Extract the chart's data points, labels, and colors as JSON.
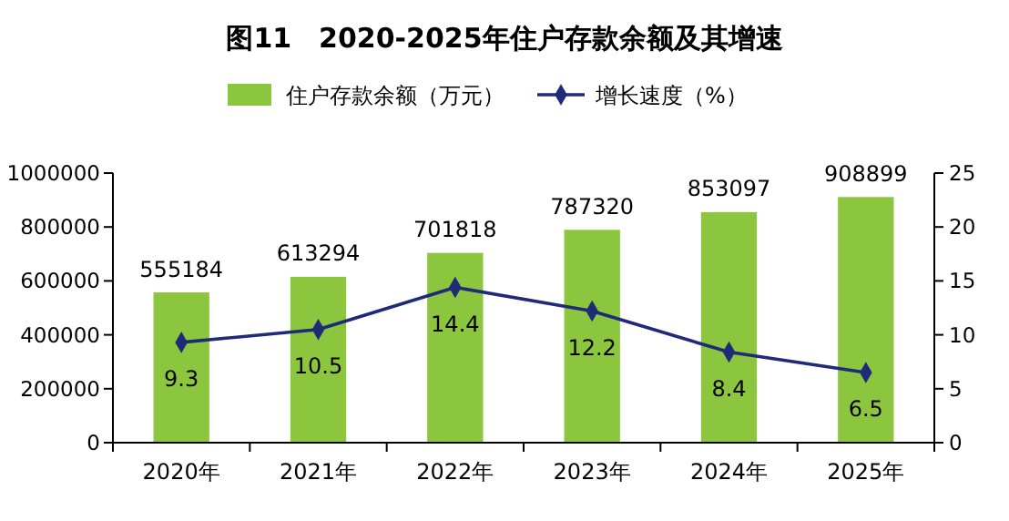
{
  "chart_data": {
    "type": "bar",
    "title": "图11　2020-2025年住户存款余额及其增速",
    "categories": [
      "2020年",
      "2021年",
      "2022年",
      "2023年",
      "2024年",
      "2025年"
    ],
    "series": [
      {
        "name": "住户存款余额（万元）",
        "color": "#8cc63e",
        "values": [
          555184,
          613294,
          701818,
          787320,
          853097,
          908899
        ]
      },
      {
        "name": "增长速度（%）",
        "type": "line",
        "axis": "y2",
        "color": "#1f2a78",
        "marker": "diamond",
        "values": [
          9.3,
          10.5,
          14.4,
          12.2,
          8.4,
          6.5
        ]
      }
    ],
    "ylim": [
      0,
      1000000
    ],
    "yticks": [
      0,
      200000,
      400000,
      600000,
      800000,
      1000000
    ],
    "y2lim": [
      0,
      25
    ],
    "y2ticks": [
      0,
      5,
      10,
      15,
      20,
      25
    ],
    "data_labels": true,
    "legend": "top",
    "grid": false
  }
}
